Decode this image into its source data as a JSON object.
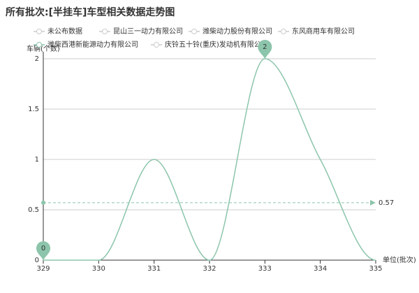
{
  "chart_data": {
    "type": "line",
    "title": "所有批次:[半挂车]车型相关数据走势图",
    "y_axis_label": "车辆(个数)",
    "x_axis_label": "单位(批次)",
    "x": [
      329,
      330,
      331,
      332,
      333,
      334,
      335
    ],
    "xlim": [
      329,
      335
    ],
    "xticks": [
      329,
      330,
      331,
      332,
      333,
      334,
      335
    ],
    "ylim": [
      0,
      2
    ],
    "yticks": [
      0,
      0.5,
      1,
      1.5,
      2
    ],
    "grid": true,
    "smooth": true,
    "series": [
      {
        "name": "未公布数据",
        "selected": false
      },
      {
        "name": "昆山三一动力有限公司",
        "selected": false
      },
      {
        "name": "潍柴动力股份有限公司",
        "selected": false
      },
      {
        "name": "东风商用车有限公司",
        "selected": false
      },
      {
        "name": "潍柴西港新能源动力有限公司",
        "selected": true,
        "color": "#8cc5ab",
        "values": [
          0,
          0,
          1,
          0,
          2,
          1,
          0
        ]
      },
      {
        "name": "庆铃五十铃(重庆)发动机有限公司",
        "selected": false
      }
    ],
    "mark_points": [
      {
        "x": 329,
        "value": 0
      },
      {
        "x": 333,
        "value": 2
      }
    ],
    "mark_line": {
      "value": 0.57
    }
  }
}
